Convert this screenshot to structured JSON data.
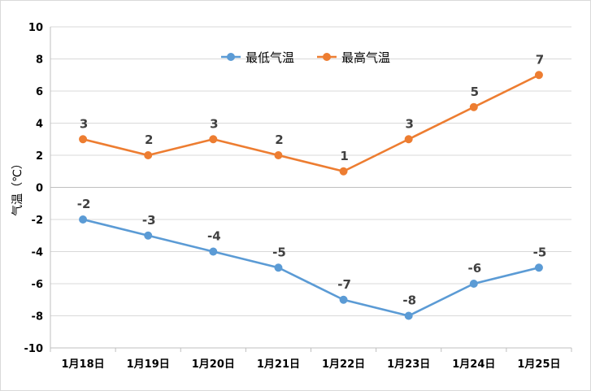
{
  "chart_data": {
    "type": "line",
    "categories": [
      "1月18日",
      "1月19日",
      "1月20日",
      "1月21日",
      "1月22日",
      "1月23日",
      "1月24日",
      "1月25日"
    ],
    "series": [
      {
        "name": "最低气温",
        "color": "#5b9bd5",
        "values": [
          -2,
          -3,
          -4,
          -5,
          -7,
          -8,
          -6,
          -5
        ]
      },
      {
        "name": "最高气温",
        "color": "#ed7d31",
        "values": [
          3,
          2,
          3,
          2,
          1,
          3,
          5,
          7
        ]
      }
    ],
    "ylabel": "气温（℃）",
    "ylim": [
      -10,
      10
    ],
    "yticks": [
      -10,
      -8,
      -6,
      -4,
      -2,
      0,
      2,
      4,
      6,
      8,
      10
    ],
    "grid": true,
    "legend_position": "top-center"
  }
}
